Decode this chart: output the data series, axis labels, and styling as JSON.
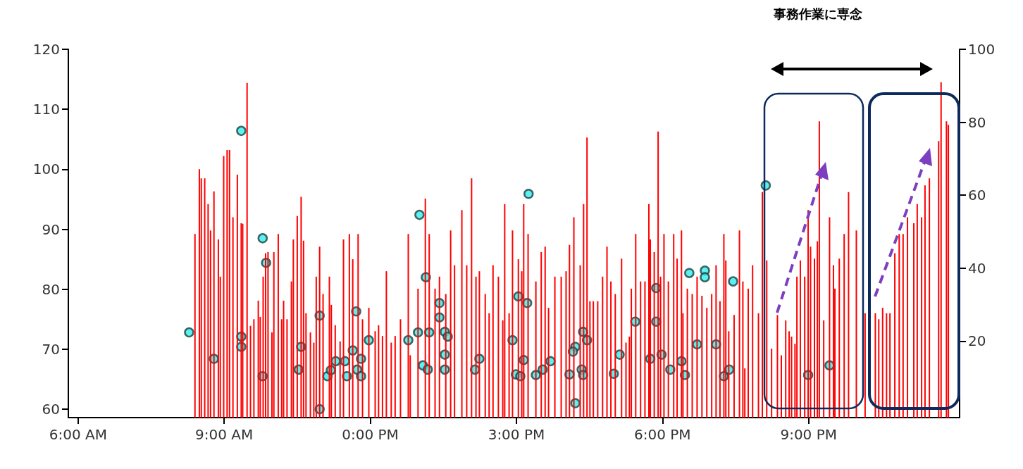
{
  "chart_data": {
    "type": "bar",
    "annotations": [
      "事務作業に専念"
    ],
    "xlim": [
      5.8,
      24.1
    ],
    "xticks": [
      {
        "value": 6,
        "label": "6:00 AM"
      },
      {
        "value": 9,
        "label": "9:00 AM"
      },
      {
        "value": 12,
        "label": "0:00 PM"
      },
      {
        "value": 15,
        "label": "3:00 PM"
      },
      {
        "value": 18,
        "label": "6:00 PM"
      },
      {
        "value": 21,
        "label": "9:00 PM"
      }
    ],
    "ylim": [
      58.6,
      120
    ],
    "yticks": [
      60,
      70,
      80,
      90,
      100,
      110,
      120
    ],
    "y2lim": [
      -1,
      100
    ],
    "y2ticks": [
      20,
      40,
      60,
      80,
      100
    ],
    "grid": false,
    "series": [
      {
        "color": "#ff0000",
        "x": [
          8.4,
          8.49,
          8.53,
          8.6,
          8.67,
          8.72,
          8.79,
          8.88,
          8.92,
          8.99,
          9.06,
          9.11,
          9.18,
          9.27,
          9.35,
          9.38,
          9.47,
          9.54,
          9.61,
          9.7,
          9.74,
          9.8,
          9.85,
          9.9,
          9.98,
          10.02,
          10.11,
          10.18,
          10.22,
          10.29,
          10.38,
          10.42,
          10.5,
          10.58,
          10.63,
          10.68,
          10.77,
          10.84,
          10.89,
          10.96,
          11.03,
          11.16,
          11.2,
          11.28,
          11.38,
          11.45,
          11.57,
          11.64,
          11.75,
          11.84,
          11.97,
          12.1,
          12.17,
          12.25,
          12.33,
          12.43,
          12.51,
          12.62,
          12.78,
          12.82,
          12.98,
          13.13,
          13.21,
          13.33,
          13.42,
          13.55,
          13.65,
          13.73,
          13.88,
          13.98,
          14.08,
          14.17,
          14.24,
          14.36,
          14.44,
          14.52,
          14.63,
          14.72,
          14.76,
          14.85,
          14.92,
          15.04,
          15.11,
          15.15,
          15.24,
          15.4,
          15.51,
          15.59,
          15.66,
          15.79,
          15.92,
          16.02,
          16.09,
          16.18,
          16.31,
          16.38,
          16.45,
          16.51,
          16.58,
          16.67,
          16.77,
          16.86,
          16.94,
          17.03,
          17.16,
          17.25,
          17.32,
          17.36,
          17.45,
          17.55,
          17.64,
          17.72,
          17.75,
          17.83,
          17.91,
          17.96,
          18.03,
          18.12,
          18.23,
          18.3,
          18.39,
          18.42,
          18.51,
          18.61,
          18.71,
          18.81,
          18.91,
          19.01,
          19.1,
          19.18,
          19.26,
          19.3,
          19.36,
          19.47,
          19.58,
          19.65,
          19.69,
          19.76,
          19.85,
          19.97,
          20.05,
          20.14,
          20.24,
          20.36,
          20.44,
          20.53,
          20.6,
          20.65,
          20.72,
          20.76,
          20.83,
          20.92,
          20.99,
          21.04,
          21.12,
          21.18,
          21.22,
          21.31,
          21.43,
          21.51,
          21.54,
          21.63,
          21.73,
          21.82,
          21.98,
          22.16,
          22.37,
          22.44,
          22.52,
          22.6,
          22.67,
          22.77,
          22.86,
          22.94,
          23.03,
          23.16,
          23.23,
          23.32,
          23.39,
          23.48,
          23.67,
          23.72,
          23.83,
          23.87
        ],
        "values": [
          89.2,
          100,
          98.5,
          98.5,
          94.2,
          89.8,
          96.3,
          88.3,
          82.1,
          102.2,
          103.2,
          103.2,
          92,
          99.1,
          91,
          90.9,
          114.4,
          73.9,
          75,
          78.1,
          75.4,
          82.1,
          86,
          86.2,
          72.8,
          86.2,
          89.2,
          75,
          78.1,
          75,
          81.3,
          88.3,
          92.2,
          95.4,
          88.1,
          76,
          72.8,
          71.1,
          82.1,
          87.1,
          79.2,
          82.1,
          77.4,
          74,
          71.3,
          88.3,
          89.2,
          85,
          89.2,
          75,
          76.9,
          73,
          74,
          72.2,
          83,
          71.1,
          72.2,
          75,
          89.2,
          69,
          80.1,
          95.1,
          89.2,
          80.1,
          82.1,
          79.2,
          89.8,
          84,
          93.2,
          84,
          98.5,
          82.1,
          83,
          79.2,
          76,
          84,
          82.1,
          74.8,
          94.2,
          76,
          89.8,
          85,
          83,
          94.2,
          89.2,
          81.3,
          86.2,
          87.1,
          76.9,
          82.1,
          82.1,
          83,
          87.4,
          92,
          84,
          94.2,
          105.3,
          78,
          78,
          78,
          82.1,
          87.1,
          81.3,
          79.2,
          85.1,
          71.1,
          72.1,
          80.1,
          89.2,
          81.3,
          81.3,
          94.2,
          88.3,
          86.2,
          106.3,
          82.1,
          89.2,
          81.3,
          89.2,
          85.1,
          89.8,
          76,
          80.1,
          79.2,
          82.1,
          78.9,
          76.9,
          79.2,
          84,
          78,
          89.2,
          84.8,
          73,
          75.7,
          89.8,
          81.3,
          66.8,
          80.1,
          84,
          76,
          96.2,
          84.8,
          70.1,
          75.7,
          69,
          74.8,
          73,
          72.1,
          70.9,
          82.1,
          84.8,
          82.1,
          93.2,
          87.1,
          85.1,
          88,
          108,
          74.8,
          92,
          84,
          80.1,
          85.1,
          89.2,
          96.2,
          89.8,
          76,
          76,
          75,
          76.9,
          76,
          76,
          86,
          89.2,
          89.2,
          92,
          91,
          94.2,
          92,
          97.3,
          98.5,
          104.7,
          114.5,
          108,
          107.4
        ]
      },
      {
        "type": "scatter",
        "color": "#33eeee",
        "marker": "circle",
        "x": [
          8.28,
          8.79,
          9.35,
          9.35,
          9.35,
          9.79,
          9.86,
          9.79,
          10.53,
          10.58,
          10.96,
          10.96,
          11.12,
          11.19,
          11.29,
          11.48,
          11.52,
          11.64,
          11.71,
          11.73,
          11.81,
          11.81,
          11.97,
          12.78,
          13.01,
          12.98,
          13.14,
          13.08,
          13.18,
          13.21,
          13.42,
          13.42,
          13.53,
          13.59,
          13.53,
          13.53,
          14.15,
          14.24,
          14.92,
          15.04,
          14.99,
          15.08,
          15.15,
          15.22,
          15.25,
          15.4,
          15.54,
          15.7,
          16.09,
          16.21,
          16.16,
          16.37,
          16.45,
          16.34,
          16.37,
          16.21,
          17.0,
          17.12,
          17.44,
          17.75,
          17.87,
          17.87,
          17.98,
          18.16,
          18.39,
          18.46,
          18.55,
          18.71,
          18.87,
          18.87,
          19.1,
          19.26,
          19.37,
          19.45,
          20.12,
          20.99,
          21.43
        ],
        "values": [
          72.8,
          68.4,
          106.4,
          72.1,
          70.4,
          88.5,
          84.4,
          65.5,
          66.6,
          70.4,
          75.6,
          60,
          65.5,
          66.5,
          68,
          68,
          65.5,
          69.8,
          76.3,
          66.6,
          68.4,
          65.5,
          71.5,
          71.5,
          92.4,
          72.8,
          82,
          67.3,
          66.6,
          72.8,
          77.7,
          75.3,
          72.9,
          72.1,
          69.1,
          66.6,
          66.6,
          68.4,
          71.5,
          78.8,
          65.8,
          65.5,
          68.2,
          77.7,
          95.9,
          65.7,
          66.6,
          68,
          65.8,
          70.4,
          69.6,
          72.9,
          71.5,
          66.6,
          65.7,
          61,
          65.9,
          69.1,
          74.6,
          68.4,
          80.2,
          74.6,
          69.1,
          66.6,
          68,
          65.7,
          82.7,
          70.8,
          83.1,
          82,
          70.8,
          65.5,
          66.6,
          81.3,
          97.3,
          65.7,
          67.3
        ]
      }
    ]
  }
}
